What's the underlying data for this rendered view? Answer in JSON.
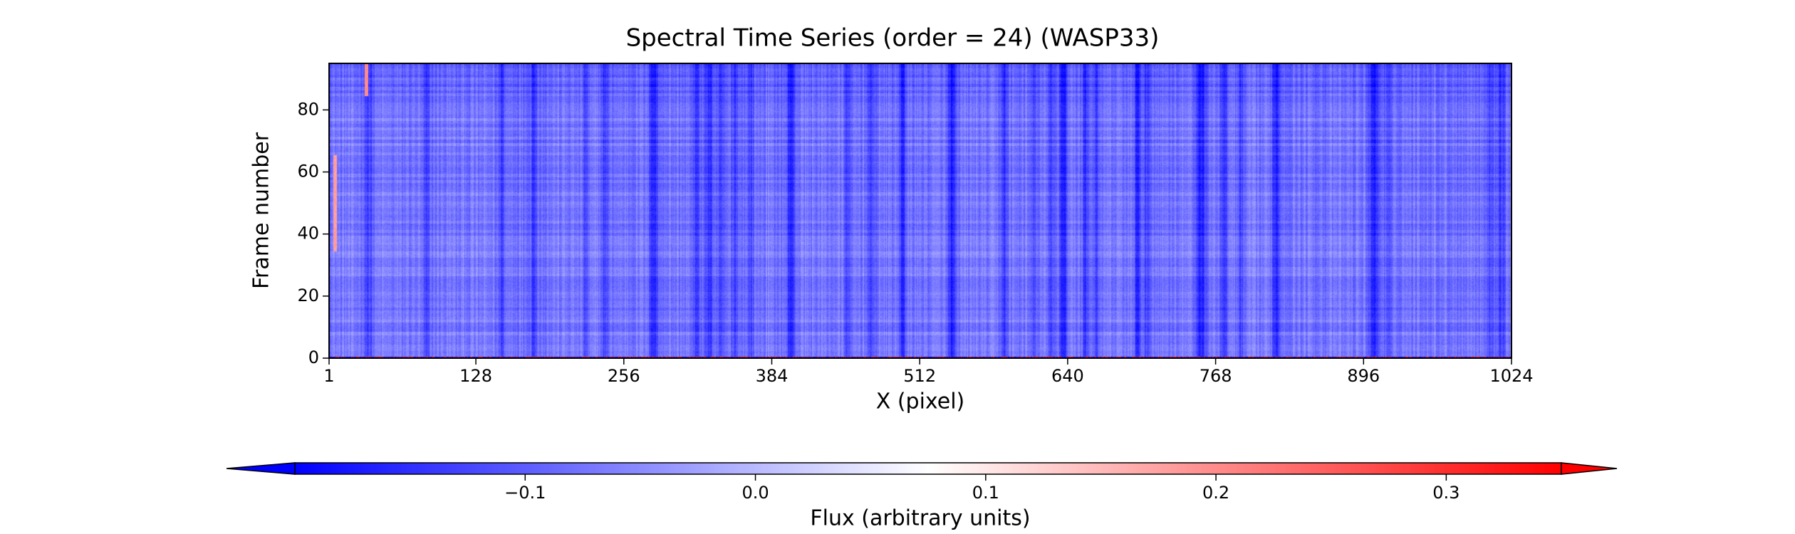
{
  "chart_data": {
    "type": "heatmap",
    "title": "Spectral Time Series (order = 24) (WASP33)",
    "xlabel": "X (pixel)",
    "ylabel": "Frame number",
    "xlim": [
      1,
      1024
    ],
    "ylim": [
      0,
      95
    ],
    "x_ticks": [
      1,
      128,
      256,
      384,
      512,
      640,
      768,
      896,
      1024
    ],
    "y_ticks": [
      0,
      20,
      40,
      60,
      80
    ],
    "colormap": "bwr",
    "colors": {
      "low": "#0000ff",
      "mid": "#ffffff",
      "high": "#ff0000"
    },
    "value_range": [
      -0.2,
      0.35
    ],
    "colorbar": {
      "label": "Flux (arbitrary units)",
      "ticks": [
        -0.1,
        0.0,
        0.1,
        0.2,
        0.3
      ],
      "tick_labels": [
        "−0.1",
        "0.0",
        "0.1",
        "0.2",
        "0.3"
      ],
      "extend": "both",
      "orientation": "horizontal",
      "placement": "bottom"
    },
    "background_level": -0.07,
    "absorption_features": [
      {
        "x": 35,
        "depth": 0.06,
        "width": 3
      },
      {
        "x": 85,
        "depth": 0.07,
        "width": 3
      },
      {
        "x": 150,
        "depth": 0.05,
        "width": 3
      },
      {
        "x": 178,
        "depth": 0.06,
        "width": 3
      },
      {
        "x": 223,
        "depth": 0.05,
        "width": 3
      },
      {
        "x": 240,
        "depth": 0.06,
        "width": 3
      },
      {
        "x": 282,
        "depth": 0.08,
        "width": 4
      },
      {
        "x": 318,
        "depth": 0.06,
        "width": 4
      },
      {
        "x": 330,
        "depth": 0.07,
        "width": 4
      },
      {
        "x": 340,
        "depth": 0.06,
        "width": 4
      },
      {
        "x": 352,
        "depth": 0.05,
        "width": 3
      },
      {
        "x": 365,
        "depth": 0.05,
        "width": 3
      },
      {
        "x": 400,
        "depth": 0.1,
        "width": 3
      },
      {
        "x": 450,
        "depth": 0.06,
        "width": 3
      },
      {
        "x": 470,
        "depth": 0.07,
        "width": 3
      },
      {
        "x": 497,
        "depth": 0.08,
        "width": 3
      },
      {
        "x": 540,
        "depth": 0.1,
        "width": 4
      },
      {
        "x": 585,
        "depth": 0.06,
        "width": 3
      },
      {
        "x": 610,
        "depth": 0.05,
        "width": 3
      },
      {
        "x": 625,
        "depth": 0.06,
        "width": 3
      },
      {
        "x": 636,
        "depth": 0.1,
        "width": 3
      },
      {
        "x": 655,
        "depth": 0.06,
        "width": 3
      },
      {
        "x": 665,
        "depth": 0.06,
        "width": 3
      },
      {
        "x": 700,
        "depth": 0.08,
        "width": 3
      },
      {
        "x": 708,
        "depth": 0.06,
        "width": 3
      },
      {
        "x": 755,
        "depth": 0.1,
        "width": 4
      },
      {
        "x": 775,
        "depth": 0.07,
        "width": 3
      },
      {
        "x": 790,
        "depth": 0.06,
        "width": 3
      },
      {
        "x": 820,
        "depth": 0.09,
        "width": 3
      },
      {
        "x": 905,
        "depth": 0.1,
        "width": 4
      },
      {
        "x": 918,
        "depth": 0.06,
        "width": 3
      },
      {
        "x": 1005,
        "depth": 0.06,
        "width": 3
      },
      {
        "x": 1015,
        "depth": 0.06,
        "width": 3
      }
    ],
    "emission_features": [
      {
        "x": 33,
        "frames": [
          85,
          95
        ],
        "value": 0.2
      },
      {
        "x": 6,
        "frames": [
          35,
          65
        ],
        "value": 0.18
      }
    ],
    "bottom_frame_row": {
      "frame": 0,
      "pattern": "alternating strong red/blue pixels"
    }
  }
}
